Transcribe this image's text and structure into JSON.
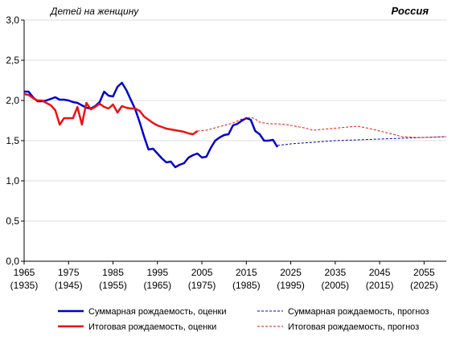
{
  "chart_data": {
    "type": "line",
    "unit_label": "Детей на женщину",
    "region_label": "Россия",
    "x_domain": [
      1965,
      2060
    ],
    "ylim": [
      0,
      3
    ],
    "y_ticks": [
      "0,0",
      "0,5",
      "1,0",
      "1,5",
      "2,0",
      "2,5",
      "3,0"
    ],
    "x_ticks": [
      {
        "year": 1965,
        "label": "1965",
        "sublabel": "(1935)"
      },
      {
        "year": 1975,
        "label": "1975",
        "sublabel": "(1945)"
      },
      {
        "year": 1985,
        "label": "1985",
        "sublabel": "(1955)"
      },
      {
        "year": 1995,
        "label": "1995",
        "sublabel": "(1965)"
      },
      {
        "year": 2005,
        "label": "2005",
        "sublabel": "(1975)"
      },
      {
        "year": 2015,
        "label": "2015",
        "sublabel": "(1985)"
      },
      {
        "year": 2025,
        "label": "2025",
        "sublabel": "(1995)"
      },
      {
        "year": 2035,
        "label": "2035",
        "sublabel": "(2005)"
      },
      {
        "year": 2045,
        "label": "2045",
        "sublabel": "(2015)"
      },
      {
        "year": 2055,
        "label": "2055",
        "sublabel": "(2025)"
      }
    ],
    "grid": true,
    "series": [
      {
        "name": "Суммарная рождаемость, оценки",
        "color": "#0000cc",
        "style": "solid",
        "x": [
          1965,
          1966,
          1967,
          1968,
          1969,
          1970,
          1971,
          1972,
          1973,
          1974,
          1975,
          1976,
          1977,
          1978,
          1979,
          1980,
          1981,
          1982,
          1983,
          1984,
          1985,
          1986,
          1987,
          1988,
          1989,
          1990,
          1991,
          1992,
          1993,
          1994,
          1995,
          1996,
          1997,
          1998,
          1999,
          2000,
          2001,
          2002,
          2003,
          2004,
          2005,
          2006,
          2007,
          2008,
          2009,
          2010,
          2011,
          2012,
          2013,
          2014,
          2015,
          2016,
          2017,
          2018,
          2019,
          2020,
          2021,
          2022
        ],
        "y": [
          2.11,
          2.11,
          2.04,
          1.99,
          1.99,
          2.0,
          2.02,
          2.04,
          2.01,
          2.01,
          2.0,
          1.98,
          1.97,
          1.94,
          1.91,
          1.9,
          1.93,
          1.98,
          2.11,
          2.06,
          2.05,
          2.17,
          2.22,
          2.13,
          2.01,
          1.89,
          1.73,
          1.55,
          1.39,
          1.4,
          1.34,
          1.28,
          1.23,
          1.24,
          1.17,
          1.2,
          1.22,
          1.29,
          1.32,
          1.34,
          1.29,
          1.3,
          1.41,
          1.5,
          1.54,
          1.57,
          1.58,
          1.69,
          1.71,
          1.75,
          1.78,
          1.76,
          1.62,
          1.58,
          1.5,
          1.5,
          1.51,
          1.42
        ]
      },
      {
        "name": "Итоговая рождаемость, оценки",
        "color": "#ee1111",
        "style": "solid",
        "x": [
          1965,
          1966,
          1967,
          1968,
          1969,
          1970,
          1971,
          1972,
          1973,
          1974,
          1975,
          1976,
          1977,
          1978,
          1979,
          1980,
          1981,
          1982,
          1983,
          1984,
          1985,
          1986,
          1987,
          1988,
          1989,
          1990,
          1991,
          1992,
          1993,
          1994,
          1995,
          1996,
          1997,
          1998,
          1999,
          2000,
          2001,
          2002,
          2003,
          2004
        ],
        "y": [
          2.08,
          2.07,
          2.03,
          2.0,
          2.0,
          1.97,
          1.94,
          1.88,
          1.7,
          1.78,
          1.78,
          1.78,
          1.92,
          1.7,
          1.97,
          1.89,
          1.92,
          1.96,
          1.92,
          1.9,
          1.95,
          1.85,
          1.93,
          1.91,
          1.9,
          1.9,
          1.87,
          1.8,
          1.76,
          1.72,
          1.69,
          1.67,
          1.65,
          1.64,
          1.63,
          1.62,
          1.61,
          1.59,
          1.58,
          1.62
        ]
      },
      {
        "name": "Суммарная рождаемость, прогноз",
        "color": "#0000cc",
        "style": "dashed",
        "x": [
          2022,
          2025,
          2030,
          2035,
          2040,
          2045,
          2050,
          2055,
          2060
        ],
        "y": [
          1.44,
          1.46,
          1.48,
          1.5,
          1.51,
          1.52,
          1.53,
          1.54,
          1.55
        ]
      },
      {
        "name": "Итоговая рождаемость, прогноз",
        "color": "#ee1111",
        "style": "dashed",
        "x": [
          2004,
          2006,
          2008,
          2010,
          2012,
          2014,
          2016,
          2017,
          2018,
          2020,
          2022,
          2024,
          2026,
          2028,
          2030,
          2032,
          2034,
          2036,
          2038,
          2040,
          2042,
          2045,
          2048,
          2050,
          2053,
          2056,
          2060
        ],
        "y": [
          1.62,
          1.63,
          1.66,
          1.69,
          1.72,
          1.77,
          1.79,
          1.77,
          1.73,
          1.71,
          1.71,
          1.7,
          1.68,
          1.66,
          1.63,
          1.64,
          1.65,
          1.66,
          1.67,
          1.68,
          1.66,
          1.62,
          1.58,
          1.55,
          1.54,
          1.54,
          1.55
        ]
      }
    ],
    "legend": {
      "placement": "bottom",
      "entries": [
        {
          "label": "Суммарная  рождаемость, оценки",
          "color": "#0000cc",
          "style": "solid"
        },
        {
          "label": "Суммарная  рождаемость, прогноз",
          "color": "#0000cc",
          "style": "dashed"
        },
        {
          "label": "Итоговая рождаемость, оценки",
          "color": "#ee1111",
          "style": "solid"
        },
        {
          "label": "Итоговая рождаемость, прогноз",
          "color": "#ee1111",
          "style": "dashed"
        }
      ]
    }
  }
}
